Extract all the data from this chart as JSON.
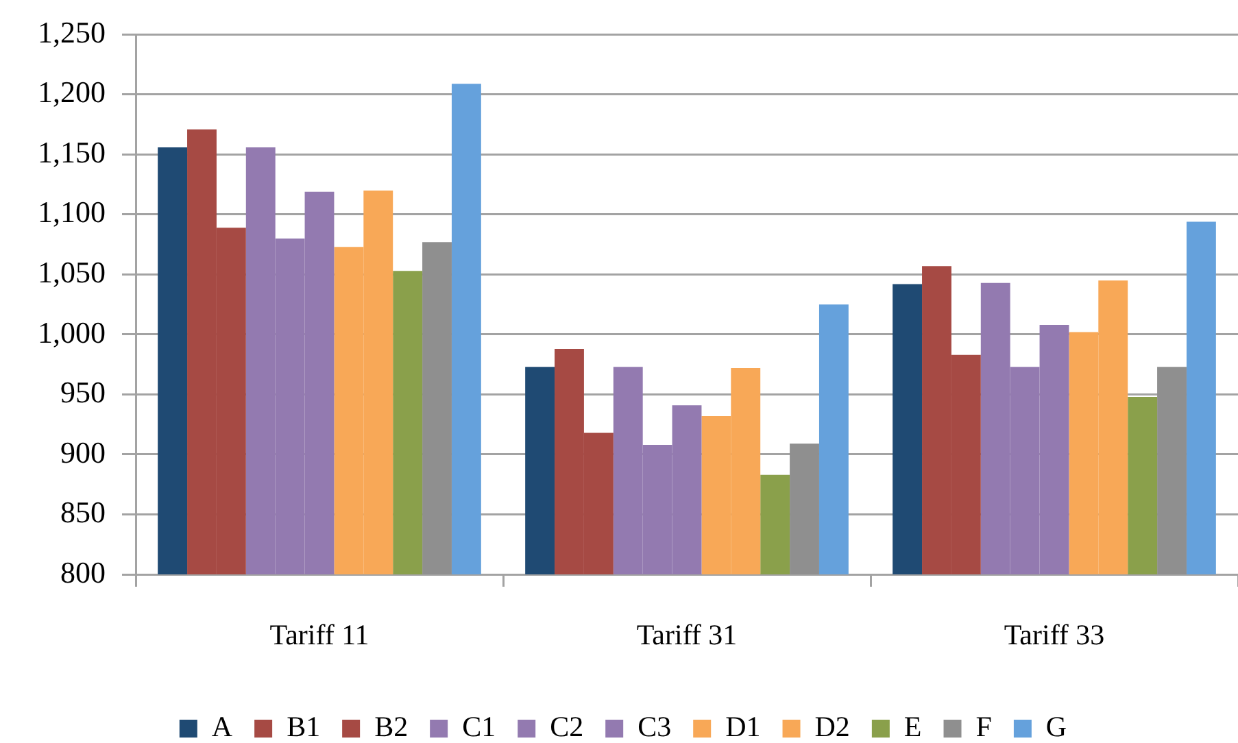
{
  "chart_data": {
    "type": "bar",
    "categories": [
      "Tariff 11",
      "Tariff 31",
      "Tariff 33"
    ],
    "series": [
      {
        "name": "A",
        "color": "#1f4a73",
        "values": [
          1156,
          973,
          1042
        ]
      },
      {
        "name": "B1",
        "color": "#a64a44",
        "values": [
          1171,
          988,
          1057
        ]
      },
      {
        "name": "B2",
        "color": "#a64a44",
        "values": [
          1089,
          918,
          983
        ]
      },
      {
        "name": "C1",
        "color": "#937ab0",
        "values": [
          1156,
          973,
          1043
        ]
      },
      {
        "name": "C2",
        "color": "#937ab0",
        "values": [
          1080,
          908,
          973
        ]
      },
      {
        "name": "C3",
        "color": "#937ab0",
        "values": [
          1119,
          941,
          1008
        ]
      },
      {
        "name": "D1",
        "color": "#f8a857",
        "values": [
          1073,
          932,
          1002
        ]
      },
      {
        "name": "D2",
        "color": "#f8a857",
        "values": [
          1120,
          972,
          1045
        ]
      },
      {
        "name": "E",
        "color": "#8aa04b",
        "values": [
          1053,
          883,
          948
        ]
      },
      {
        "name": "F",
        "color": "#8f8f8f",
        "values": [
          1077,
          909,
          973
        ]
      },
      {
        "name": "G",
        "color": "#65a1dc",
        "values": [
          1209,
          1025,
          1094
        ]
      }
    ],
    "ylim": [
      800,
      1250
    ],
    "yticks": [
      800,
      850,
      900,
      950,
      {
        "value": 1000,
        "label": "1,000"
      },
      {
        "value": 1050,
        "label": "1,050"
      },
      {
        "value": 1100,
        "label": "1,100"
      },
      {
        "value": 1150,
        "label": "1,150"
      },
      {
        "value": 1200,
        "label": "1,200"
      },
      {
        "value": 1250,
        "label": "1,250"
      }
    ],
    "grid": "y",
    "legend": "bottom"
  }
}
